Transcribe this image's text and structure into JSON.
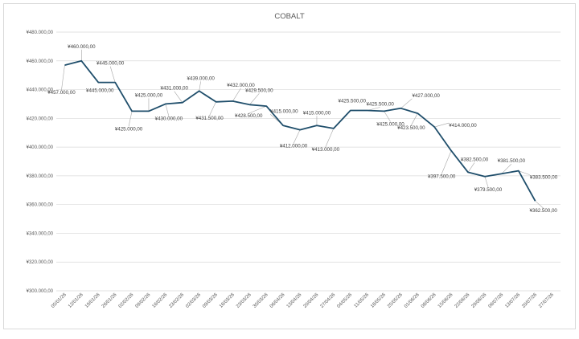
{
  "chart_data": {
    "type": "line",
    "title": "COBALT",
    "xlabel": "",
    "ylabel": "",
    "ylim": [
      300000,
      480000
    ],
    "y_ticks": [
      "¥300.000,00",
      "¥320.000,00",
      "¥340.000,00",
      "¥360.000,00",
      "¥380.000,00",
      "¥400.000,00",
      "¥420.000,00",
      "¥440.000,00",
      "¥460.000,00",
      "¥480.000,00"
    ],
    "x_ticks": [
      "05/01/26",
      "12/01/26",
      "19/01/26",
      "26/01/26",
      "02/02/26",
      "09/02/26",
      "16/02/26",
      "23/02/26",
      "02/03/26",
      "09/03/26",
      "16/03/26",
      "23/03/26",
      "30/03/26",
      "06/04/26",
      "13/04/26",
      "20/04/26",
      "27/04/26",
      "04/05/26",
      "11/05/26",
      "18/05/26",
      "25/05/26",
      "01/06/26",
      "08/06/26",
      "15/06/26",
      "22/06/26",
      "29/06/26",
      "06/07/26",
      "13/07/26",
      "20/07/26",
      "27/07/26"
    ],
    "grid": true,
    "line_color": "#1f4e6b",
    "series": [
      {
        "values": [
          457000,
          460000,
          445000,
          445000,
          425000,
          425000,
          430000,
          431000,
          439000,
          431500,
          432000,
          429500,
          428500,
          415000,
          412000,
          415000,
          413000,
          425500,
          425500,
          425000,
          427000,
          423500,
          414000,
          397500,
          382500,
          379500,
          381500,
          383500,
          362500
        ],
        "labels": [
          "¥457.000,00",
          "¥460.000,00",
          "¥445.000,00",
          "¥445.000,00",
          "¥425.000,00",
          "¥425.000,00",
          "¥430.000,00",
          "¥431.000,00",
          "¥439.000,00",
          "¥431.500,00",
          "¥432.000,00",
          "¥429.500,00",
          "¥428.500,00",
          "¥415.000,00",
          "¥412.000,00",
          "¥415.000,00",
          "¥413.000,00",
          "¥425.500,00",
          "¥425.500,00",
          "¥425.000,00",
          "¥427.000,00",
          "¥423.500,00",
          "¥414.000,00",
          "¥397.500,00",
          "¥382.500,00",
          "¥379.500,00",
          "¥381.500,00",
          "¥383.500,00",
          "¥362.500,00"
        ]
      }
    ]
  }
}
